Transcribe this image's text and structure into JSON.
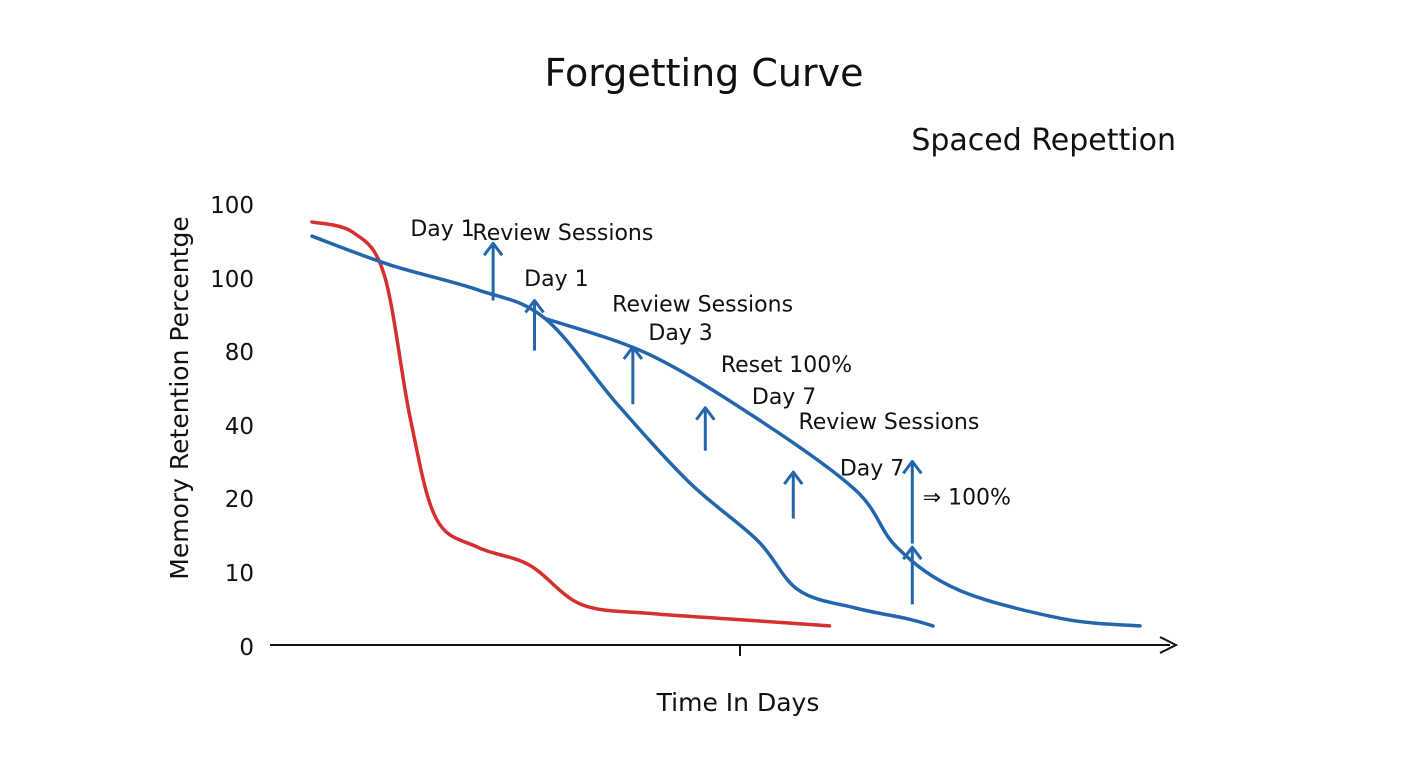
{
  "chart_data": {
    "type": "line",
    "title": "Forgetting Curve",
    "subtitle": "Spaced Repettion",
    "xlabel": "Time In Days",
    "ylabel": "Memory Retention Percentge",
    "y_tick_labels": [
      "100",
      "100",
      "80",
      "40",
      "20",
      "10",
      "0"
    ],
    "colors": {
      "forgetting": "#d62f2f",
      "spaced": "#2466ab"
    },
    "series": [
      {
        "key": "forgetting",
        "color": "#d62f2f",
        "points": [
          [
            0,
            115
          ],
          [
            0.8,
            112
          ],
          [
            1.4,
            100
          ],
          [
            1.9,
            60
          ],
          [
            2.4,
            32
          ],
          [
            3.2,
            24
          ],
          [
            4.2,
            19
          ],
          [
            5.2,
            8
          ],
          [
            6.5,
            5.5
          ],
          [
            8,
            4
          ],
          [
            10,
            2
          ]
        ]
      },
      {
        "key": "spaced",
        "color": "#2466ab",
        "points": [
          [
            0,
            111
          ],
          [
            1.5,
            103
          ],
          [
            3.2,
            96
          ],
          [
            4.5,
            88
          ],
          [
            5.9,
            64
          ],
          [
            7.3,
            42
          ],
          [
            8.6,
            26
          ],
          [
            9.4,
            12
          ],
          [
            10.5,
            7
          ],
          [
            11.5,
            4
          ],
          [
            12,
            2
          ]
        ]
      },
      {
        "key": "spaced",
        "color": "#2466ab",
        "points": [
          [
            4.5,
            88
          ],
          [
            6.5,
            78
          ],
          [
            8.6,
            60
          ],
          [
            10.5,
            40
          ],
          [
            11.3,
            24
          ],
          [
            12.5,
            12
          ],
          [
            14.5,
            4
          ],
          [
            16,
            2
          ]
        ]
      }
    ],
    "review_arrows": [
      {
        "x": 3.5,
        "y_from": 93,
        "y_to": 109
      },
      {
        "x": 4.3,
        "y_from": 79,
        "y_to": 93
      },
      {
        "x": 6.2,
        "y_from": 64,
        "y_to": 80
      },
      {
        "x": 7.6,
        "y_from": 51,
        "y_to": 63
      },
      {
        "x": 9.3,
        "y_from": 32,
        "y_to": 45
      },
      {
        "x": 11.6,
        "y_from": 25,
        "y_to": 48
      },
      {
        "x": 11.6,
        "y_from": 8,
        "y_to": 24
      }
    ],
    "annotations": [
      {
        "text": "Day 1",
        "x": 1.9,
        "y": 111
      },
      {
        "text": "Review Sessions",
        "x": 3.1,
        "y": 110
      },
      {
        "text": "Day 1",
        "x": 4.1,
        "y": 97
      },
      {
        "text": "Review Sessions",
        "x": 5.8,
        "y": 90
      },
      {
        "text": "Day 3",
        "x": 6.5,
        "y": 82
      },
      {
        "text": "Reset 100%",
        "x": 7.9,
        "y": 73
      },
      {
        "text": "Day 7",
        "x": 8.5,
        "y": 64
      },
      {
        "text": "Review Sessions",
        "x": 9.4,
        "y": 57
      },
      {
        "text": "Day 7",
        "x": 10.2,
        "y": 44
      },
      {
        "text": "⇒ 100%",
        "x": 11.8,
        "y": 36
      }
    ]
  }
}
